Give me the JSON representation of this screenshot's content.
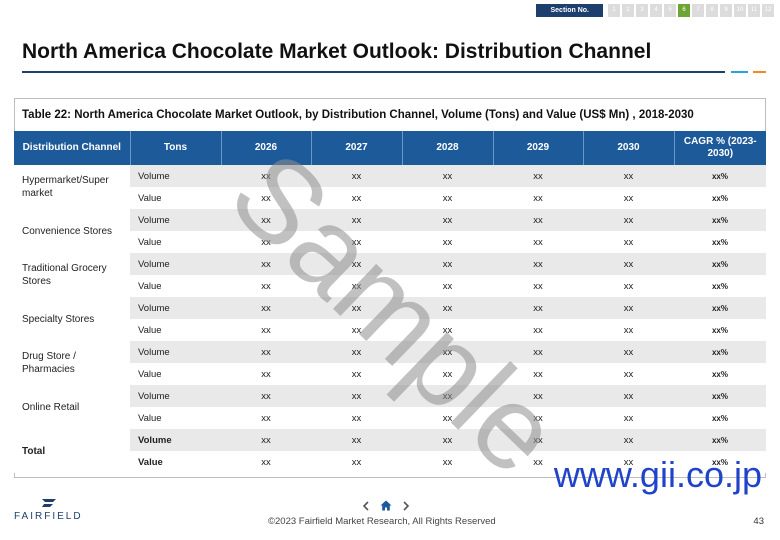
{
  "section_nav": {
    "label": "Section No.",
    "items": [
      "1",
      "2",
      "3",
      "4",
      "5",
      "6",
      "7",
      "8",
      "9",
      "10",
      "11",
      "12"
    ],
    "active_index": 5,
    "active_color": "#6ca534"
  },
  "page_title": "North America Chocolate Market Outlook: Distribution Channel",
  "table": {
    "caption": "Table 22: North America Chocolate Market Outlook, by Distribution Channel,  Volume (Tons) and Value (US$ Mn) , 2018-2030",
    "headers": [
      "Distribution Channel",
      "Tons",
      "2026",
      "2027",
      "2028",
      "2029",
      "2030",
      "CAGR % (2023-2030)"
    ],
    "rows": [
      {
        "channel": "Hypermarket/Super market",
        "metric": "Volume",
        "values": [
          "xx",
          "xx",
          "xx",
          "xx",
          "xx"
        ],
        "cagr": "xx%"
      },
      {
        "channel": "",
        "metric": "Value",
        "values": [
          "xx",
          "xx",
          "xx",
          "xx",
          "xx"
        ],
        "cagr": "xx%"
      },
      {
        "channel": "Convenience Stores",
        "metric": "Volume",
        "values": [
          "xx",
          "xx",
          "xx",
          "xx",
          "xx"
        ],
        "cagr": "xx%"
      },
      {
        "channel": "",
        "metric": "Value",
        "values": [
          "xx",
          "xx",
          "xx",
          "xx",
          "xx"
        ],
        "cagr": "xx%"
      },
      {
        "channel": "Traditional Grocery Stores",
        "metric": "Volume",
        "values": [
          "xx",
          "xx",
          "xx",
          "xx",
          "xx"
        ],
        "cagr": "xx%"
      },
      {
        "channel": "",
        "metric": "Value",
        "values": [
          "xx",
          "xx",
          "xx",
          "xx",
          "xx"
        ],
        "cagr": "xx%"
      },
      {
        "channel": "Specialty Stores",
        "metric": "Volume",
        "values": [
          "xx",
          "xx",
          "xx",
          "xx",
          "xx"
        ],
        "cagr": "xx%"
      },
      {
        "channel": "",
        "metric": "Value",
        "values": [
          "xx",
          "xx",
          "xx",
          "xx",
          "xx"
        ],
        "cagr": "xx%"
      },
      {
        "channel": "Drug Store / Pharmacies",
        "metric": "Volume",
        "values": [
          "xx",
          "xx",
          "xx",
          "xx",
          "xx"
        ],
        "cagr": "xx%"
      },
      {
        "channel": "",
        "metric": "Value",
        "values": [
          "xx",
          "xx",
          "xx",
          "xx",
          "xx"
        ],
        "cagr": "xx%"
      },
      {
        "channel": "Online Retail",
        "metric": "Volume",
        "values": [
          "xx",
          "xx",
          "xx",
          "xx",
          "xx"
        ],
        "cagr": "xx%"
      },
      {
        "channel": "",
        "metric": "Value",
        "values": [
          "xx",
          "xx",
          "xx",
          "xx",
          "xx"
        ],
        "cagr": "xx%"
      },
      {
        "channel": "Total",
        "metric": "Volume",
        "values": [
          "xx",
          "xx",
          "xx",
          "xx",
          "xx"
        ],
        "cagr": "xx%"
      },
      {
        "channel": "",
        "metric": "Value",
        "values": [
          "xx",
          "xx",
          "xx",
          "xx",
          "xx"
        ],
        "cagr": "xx%"
      }
    ]
  },
  "watermark": "Sample",
  "site_mark": "www.gii.co.jp",
  "footer": {
    "logo_text": "FAIRFIELD",
    "logo_icon": "fairfield-logo-icon",
    "prev_icon": "chevron-left-icon",
    "home_icon": "home-icon",
    "next_icon": "chevron-right-icon",
    "copyright": "©2023 Fairfield Market Research, All Rights Reserved",
    "page_number": "43"
  },
  "colors": {
    "header_bg": "#1d5a9a",
    "title_rule": "#1c3f6e",
    "row_shade": "#e9e9e9",
    "site_mark": "#1f43c9"
  }
}
